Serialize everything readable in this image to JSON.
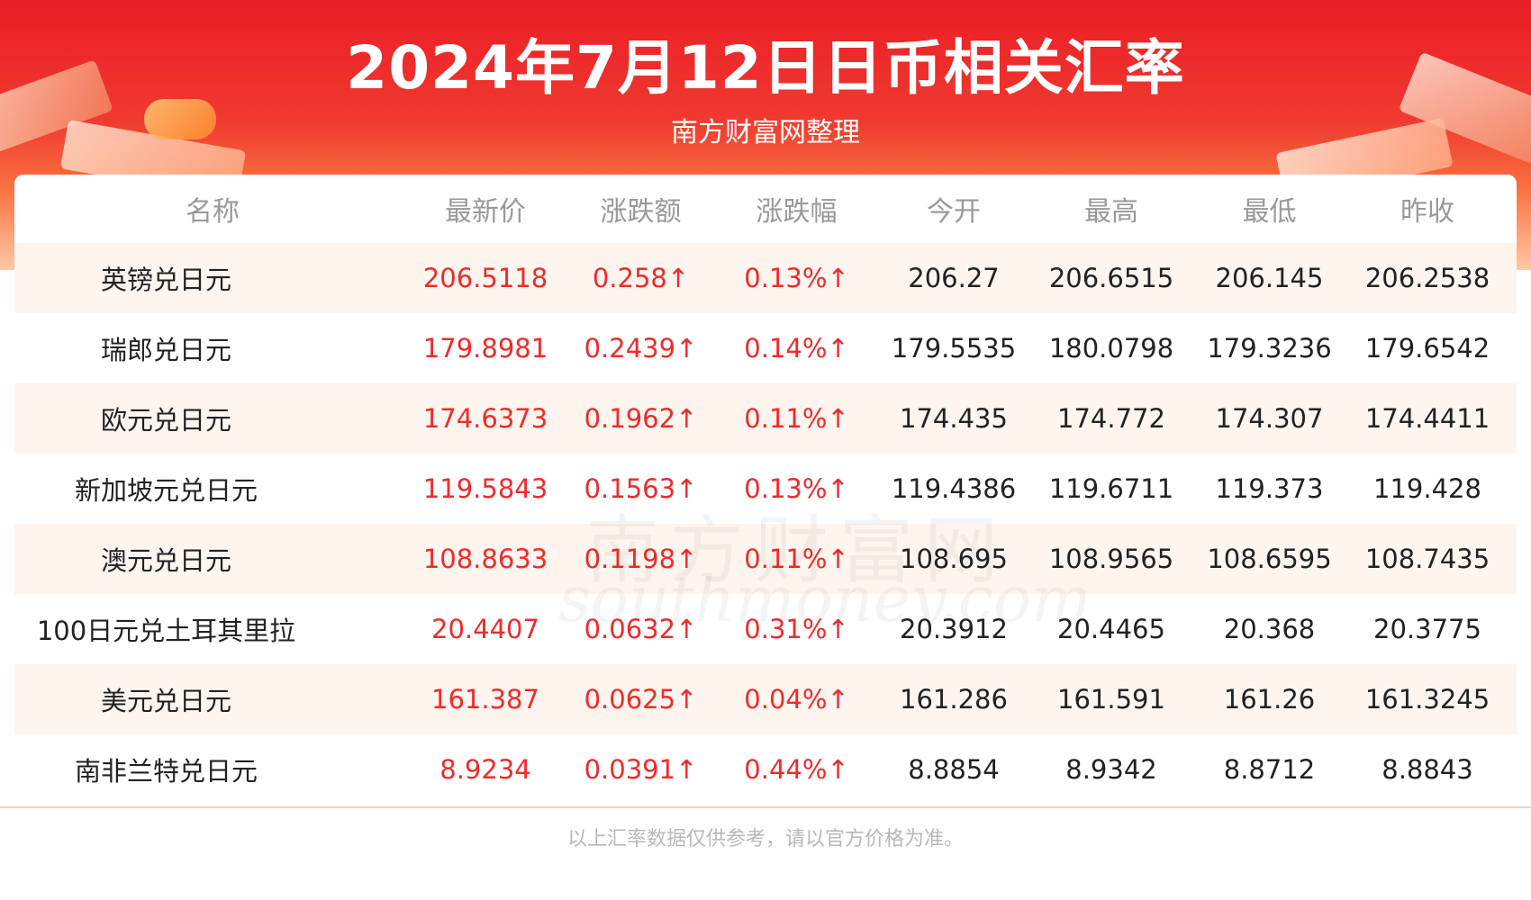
{
  "header": {
    "title": "2024年7月12日日币相关汇率",
    "subtitle": "南方财富网整理"
  },
  "watermark": {
    "cn": "南方财富网",
    "en": "southmoney.com"
  },
  "table": {
    "columns": [
      "名称",
      "最新价",
      "涨跌额",
      "涨跌幅",
      "今开",
      "最高",
      "最低",
      "昨收"
    ],
    "rows": [
      {
        "name": "英镑兑日元",
        "latest": "206.5118",
        "change": "0.258↑",
        "change_pct": "0.13%↑",
        "open": "206.27",
        "high": "206.6515",
        "low": "206.145",
        "prev_close": "206.2538"
      },
      {
        "name": "瑞郎兑日元",
        "latest": "179.8981",
        "change": "0.2439↑",
        "change_pct": "0.14%↑",
        "open": "179.5535",
        "high": "180.0798",
        "low": "179.3236",
        "prev_close": "179.6542"
      },
      {
        "name": "欧元兑日元",
        "latest": "174.6373",
        "change": "0.1962↑",
        "change_pct": "0.11%↑",
        "open": "174.435",
        "high": "174.772",
        "low": "174.307",
        "prev_close": "174.4411"
      },
      {
        "name": "新加坡元兑日元",
        "latest": "119.5843",
        "change": "0.1563↑",
        "change_pct": "0.13%↑",
        "open": "119.4386",
        "high": "119.6711",
        "low": "119.373",
        "prev_close": "119.428"
      },
      {
        "name": "澳元兑日元",
        "latest": "108.8633",
        "change": "0.1198↑",
        "change_pct": "0.11%↑",
        "open": "108.695",
        "high": "108.9565",
        "low": "108.6595",
        "prev_close": "108.7435"
      },
      {
        "name": "100日元兑土耳其里拉",
        "latest": "20.4407",
        "change": "0.0632↑",
        "change_pct": "0.31%↑",
        "open": "20.3912",
        "high": "20.4465",
        "low": "20.368",
        "prev_close": "20.3775"
      },
      {
        "name": "美元兑日元",
        "latest": "161.387",
        "change": "0.0625↑",
        "change_pct": "0.04%↑",
        "open": "161.286",
        "high": "161.591",
        "low": "161.26",
        "prev_close": "161.3245"
      },
      {
        "name": "南非兰特兑日元",
        "latest": "8.9234",
        "change": "0.0391↑",
        "change_pct": "0.44%↑",
        "open": "8.8854",
        "high": "8.9342",
        "low": "8.8712",
        "prev_close": "8.8843"
      }
    ]
  },
  "footer": {
    "note": "以上汇率数据仅供参考，请以官方价格为准。"
  },
  "colors": {
    "header_red": "#ea1d26",
    "rise_red": "#f22a2a",
    "stripe": "#fff5ef"
  }
}
